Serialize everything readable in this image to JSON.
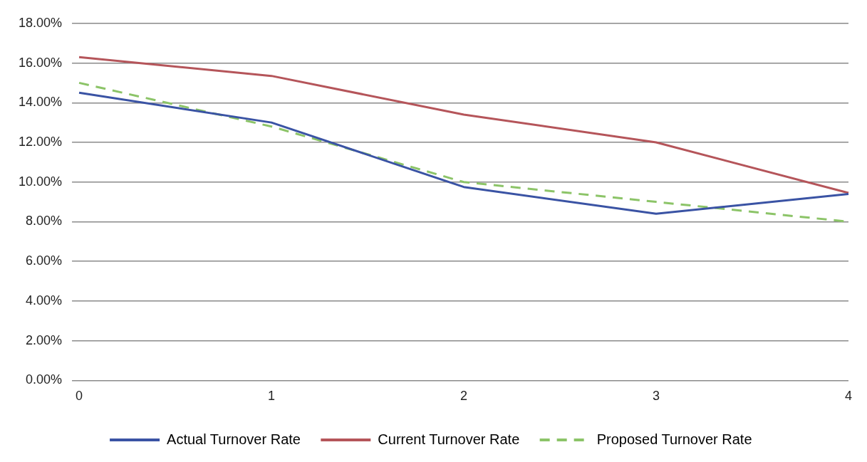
{
  "chart_data": {
    "type": "line",
    "categories": [
      "0",
      "1",
      "2",
      "3",
      "4"
    ],
    "series": [
      {
        "name": "Actual Turnover Rate",
        "color": "#3a53a4",
        "values": [
          14.5,
          13.0,
          9.75,
          8.4,
          9.4
        ]
      },
      {
        "name": "Current Turnover Rate",
        "color": "#b5555a",
        "values": [
          16.3,
          15.35,
          13.4,
          12.0,
          9.45
        ]
      },
      {
        "name": "Proposed Turnover Rate",
        "color": "#8cc468",
        "values": [
          15.0,
          12.8,
          10.0,
          9.0,
          8.0
        ],
        "line_style": "dashed"
      }
    ],
    "ylim": [
      0,
      18
    ],
    "yticks": [
      {
        "value": 0,
        "label": "0.00%"
      },
      {
        "value": 2,
        "label": "2.00%"
      },
      {
        "value": 4,
        "label": "4.00%"
      },
      {
        "value": 6,
        "label": "6.00%"
      },
      {
        "value": 8,
        "label": "8.00%"
      },
      {
        "value": 10,
        "label": "10.00%"
      },
      {
        "value": 12,
        "label": "12.00%"
      },
      {
        "value": 14,
        "label": "14.00%"
      },
      {
        "value": 16,
        "label": "16.00%"
      },
      {
        "value": 18,
        "label": "18.00%"
      }
    ],
    "grid": "y",
    "legend": "bottom",
    "marker": "none"
  }
}
